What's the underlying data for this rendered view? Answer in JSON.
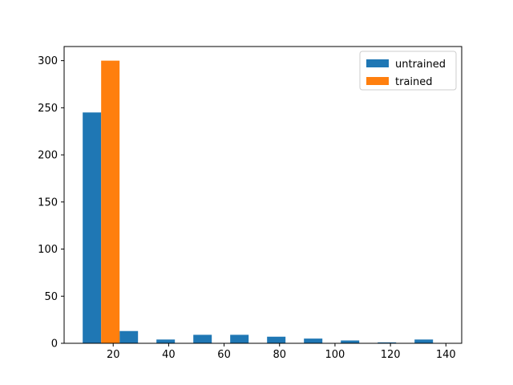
{
  "chart_data": {
    "type": "bar",
    "title": "",
    "xlabel": "",
    "ylabel": "",
    "xlim": [
      2.3,
      145.7
    ],
    "ylim": [
      0,
      315
    ],
    "xticks": [
      20,
      40,
      60,
      80,
      100,
      120,
      140
    ],
    "yticks": [
      0,
      50,
      100,
      150,
      200,
      250,
      300
    ],
    "bin_edges": [
      9.0,
      22.3,
      35.6,
      48.9,
      62.2,
      75.5,
      88.8,
      102.1,
      115.4,
      128.7,
      142.0
    ],
    "series": [
      {
        "name": "untrained",
        "color": "#1f77b4",
        "values": [
          245,
          13,
          4,
          9,
          9,
          7,
          5,
          3,
          1,
          4
        ]
      },
      {
        "name": "trained",
        "color": "#ff7f0e",
        "values": [
          300,
          0,
          0,
          0,
          0,
          0,
          0,
          0,
          0,
          0
        ]
      }
    ],
    "grid": false,
    "legend_position": "top-right"
  }
}
